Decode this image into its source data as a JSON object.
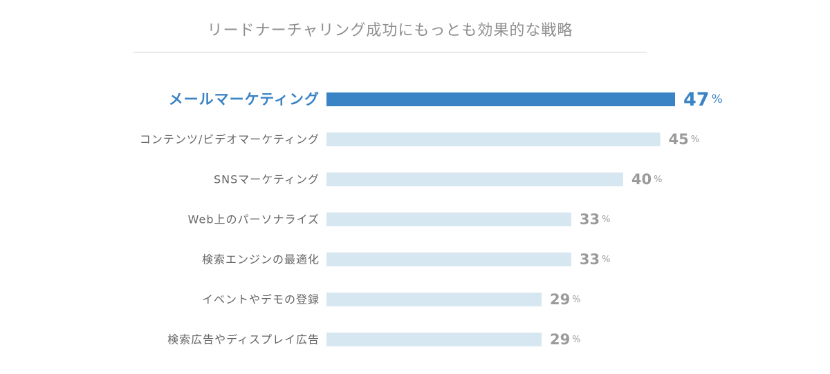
{
  "chart_data": {
    "type": "bar",
    "orientation": "horizontal",
    "title": "リードナーチャリング成功にもっとも効果的な戦略",
    "categories": [
      "メールマーケティング",
      "コンテンツ/ビデオマーケティング",
      "SNSマーケティング",
      "Web上のパーソナライズ",
      "検索エンジンの最適化",
      "イベントやデモの登録",
      "検索広告やディスプレイ広告"
    ],
    "values": [
      47,
      45,
      40,
      33,
      33,
      29,
      29
    ],
    "unit": "%",
    "highlight_index": 0,
    "xlim": [
      0,
      47
    ],
    "grid": false,
    "legend": "none",
    "colors": {
      "highlight_bar": "#3a83c5",
      "bar": "#d6e7f1",
      "highlight_text": "#3a83c5",
      "label_text": "#666666",
      "value_text": "#9a9a9a"
    }
  }
}
